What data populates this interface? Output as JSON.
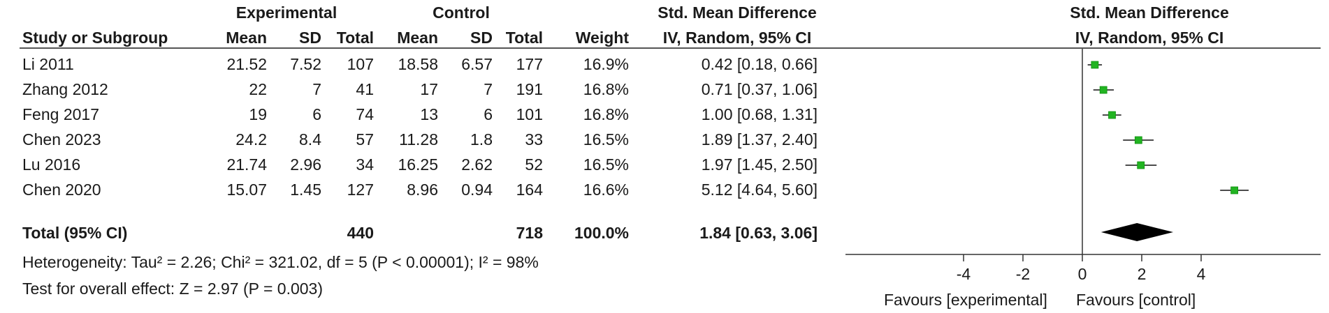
{
  "header": {
    "group_experimental": "Experimental",
    "group_control": "Control",
    "smd_title": "Std. Mean Difference",
    "col_study": "Study or Subgroup",
    "col_mean_e": "Mean",
    "col_sd_e": "SD",
    "col_total_e": "Total",
    "col_mean_c": "Mean",
    "col_sd_c": "SD",
    "col_total_c": "Total",
    "col_weight": "Weight",
    "col_method": "IV, Random, 95% CI",
    "plot_title": "Std. Mean Difference",
    "plot_method": "IV, Random, 95% CI"
  },
  "studies": [
    {
      "name": "Li 2011",
      "mean_e": "21.52",
      "sd_e": "7.52",
      "total_e": "107",
      "mean_c": "18.58",
      "sd_c": "6.57",
      "total_c": "177",
      "weight": "16.9%",
      "ci_text": "0.42 [0.18, 0.66]"
    },
    {
      "name": "Zhang 2012",
      "mean_e": "22",
      "sd_e": "7",
      "total_e": "41",
      "mean_c": "17",
      "sd_c": "7",
      "total_c": "191",
      "weight": "16.8%",
      "ci_text": "0.71 [0.37, 1.06]"
    },
    {
      "name": "Feng 2017",
      "mean_e": "19",
      "sd_e": "6",
      "total_e": "74",
      "mean_c": "13",
      "sd_c": "6",
      "total_c": "101",
      "weight": "16.8%",
      "ci_text": "1.00 [0.68, 1.31]"
    },
    {
      "name": "Chen 2023",
      "mean_e": "24.2",
      "sd_e": "8.4",
      "total_e": "57",
      "mean_c": "11.28",
      "sd_c": "1.8",
      "total_c": "33",
      "weight": "16.5%",
      "ci_text": "1.89 [1.37, 2.40]"
    },
    {
      "name": "Lu 2016",
      "mean_e": "21.74",
      "sd_e": "2.96",
      "total_e": "34",
      "mean_c": "16.25",
      "sd_c": "2.62",
      "total_c": "52",
      "weight": "16.5%",
      "ci_text": "1.97 [1.45, 2.50]"
    },
    {
      "name": "Chen 2020",
      "mean_e": "15.07",
      "sd_e": "1.45",
      "total_e": "127",
      "mean_c": "8.96",
      "sd_c": "0.94",
      "total_c": "164",
      "weight": "16.6%",
      "ci_text": "5.12 [4.64, 5.60]"
    }
  ],
  "total": {
    "label": "Total (95% CI)",
    "total_e": "440",
    "total_c": "718",
    "weight": "100.0%",
    "ci_text": "1.84 [0.63, 3.06]"
  },
  "heterogeneity": "Heterogeneity: Tau² = 2.26; Chi² = 321.02, df = 5 (P < 0.00001); I² = 98%",
  "overall_effect": "Test for overall effect: Z = 2.97 (P = 0.003)",
  "axis": {
    "favours_left": "Favours [experimental]",
    "favours_right": "Favours [control]"
  },
  "chart_data": {
    "type": "scatter",
    "title": "Std. Mean Difference",
    "subtitle": "IV, Random, 95% CI",
    "xlim": [
      -6,
      6
    ],
    "xticks": [
      -4,
      -2,
      0,
      2,
      4
    ],
    "xtick_labels": [
      "-4",
      "-2",
      "0",
      "2",
      "4"
    ],
    "reference_line": 0,
    "marker_color": "#22b422",
    "diamond_color": "#000000",
    "series": [
      {
        "name": "Li 2011",
        "estimate": 0.42,
        "lower": 0.18,
        "upper": 0.66
      },
      {
        "name": "Zhang 2012",
        "estimate": 0.71,
        "lower": 0.37,
        "upper": 1.06
      },
      {
        "name": "Feng 2017",
        "estimate": 1.0,
        "lower": 0.68,
        "upper": 1.31
      },
      {
        "name": "Chen 2023",
        "estimate": 1.89,
        "lower": 1.37,
        "upper": 2.4
      },
      {
        "name": "Lu 2016",
        "estimate": 1.97,
        "lower": 1.45,
        "upper": 2.5
      },
      {
        "name": "Chen 2020",
        "estimate": 5.12,
        "lower": 4.64,
        "upper": 5.6
      }
    ],
    "pooled": {
      "estimate": 1.84,
      "lower": 0.63,
      "upper": 3.06
    }
  }
}
